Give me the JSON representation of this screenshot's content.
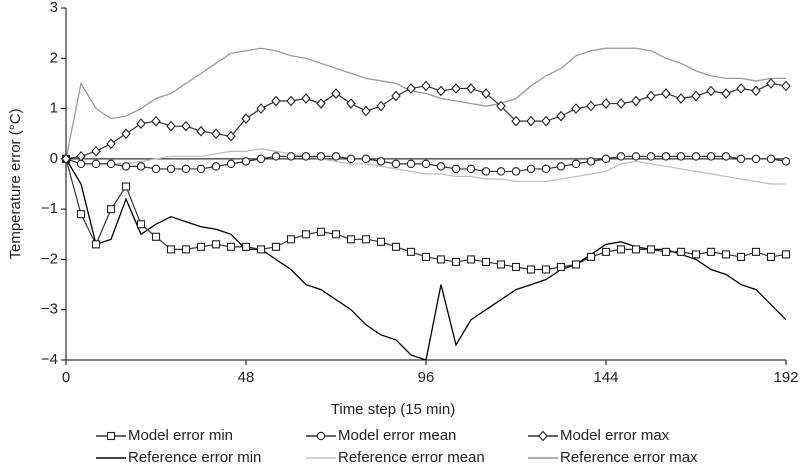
{
  "chart_data": {
    "type": "line",
    "xlabel": "Time step (15 min)",
    "ylabel": "Temperature error (°C)",
    "x": [
      0,
      4,
      8,
      12,
      16,
      20,
      24,
      28,
      32,
      36,
      40,
      44,
      48,
      52,
      56,
      60,
      64,
      68,
      72,
      76,
      80,
      84,
      88,
      92,
      96,
      100,
      104,
      108,
      112,
      116,
      120,
      124,
      128,
      132,
      136,
      140,
      144,
      148,
      152,
      156,
      160,
      164,
      168,
      172,
      176,
      180,
      184,
      188,
      192
    ],
    "xlim": [
      0,
      192
    ],
    "xticks": [
      0,
      48,
      96,
      144,
      192
    ],
    "ylim": [
      -4,
      3
    ],
    "yticks": [
      {
        "value": -4,
        "label": "−4"
      },
      {
        "value": -3,
        "label": "−3"
      },
      {
        "value": -2,
        "label": "−2"
      },
      {
        "value": -1,
        "label": "−1"
      },
      0,
      1,
      2,
      3
    ],
    "legend": "bottom",
    "series": [
      {
        "name": "Reference error min",
        "color": "#000000",
        "values": [
          0,
          -0.5,
          -1.7,
          -1.6,
          -0.8,
          -1.5,
          -1.3,
          -1.15,
          -1.25,
          -1.35,
          -1.4,
          -1.5,
          -1.8,
          -1.8,
          -2.0,
          -2.2,
          -2.5,
          -2.6,
          -2.8,
          -3.0,
          -3.3,
          -3.5,
          -3.6,
          -3.9,
          -4.0,
          -2.5,
          -3.7,
          -3.2,
          -3.0,
          -2.8,
          -2.6,
          -2.5,
          -2.4,
          -2.2,
          -2.1,
          -1.9,
          -1.7,
          -1.65,
          -1.75,
          -1.8,
          -1.8,
          -1.9,
          -2.0,
          -2.2,
          -2.3,
          -2.5,
          -2.6,
          -2.9,
          -3.2
        ]
      },
      {
        "name": "Reference error mean",
        "color": "#c0c0c0",
        "values": [
          0,
          -0.1,
          -0.1,
          -0.1,
          -0.1,
          -0.05,
          0,
          0.05,
          0.05,
          0.05,
          0.1,
          0.15,
          0.15,
          0.2,
          0.15,
          0.1,
          0.05,
          0,
          -0.05,
          -0.1,
          -0.1,
          -0.15,
          -0.2,
          -0.25,
          -0.3,
          -0.3,
          -0.35,
          -0.35,
          -0.4,
          -0.4,
          -0.45,
          -0.45,
          -0.45,
          -0.4,
          -0.35,
          -0.3,
          -0.25,
          -0.1,
          -0.05,
          -0.1,
          -0.15,
          -0.2,
          -0.25,
          -0.3,
          -0.35,
          -0.4,
          -0.45,
          -0.5,
          -0.5
        ]
      },
      {
        "name": "Reference error max",
        "color": "#999999",
        "values": [
          0,
          1.5,
          1.0,
          0.8,
          0.85,
          1.0,
          1.2,
          1.3,
          1.5,
          1.7,
          1.9,
          2.1,
          2.15,
          2.2,
          2.15,
          2.05,
          2.0,
          1.9,
          1.8,
          1.7,
          1.6,
          1.55,
          1.5,
          1.35,
          1.3,
          1.2,
          1.15,
          1.1,
          1.05,
          1.1,
          1.2,
          1.45,
          1.65,
          1.8,
          2.05,
          2.15,
          2.2,
          2.2,
          2.2,
          2.15,
          2.0,
          1.9,
          1.75,
          1.65,
          1.6,
          1.6,
          1.55,
          1.6,
          1.6
        ]
      },
      {
        "name": "Model error min",
        "color": "#333333",
        "marker": "square",
        "values": [
          0,
          -1.1,
          -1.7,
          -1.0,
          -0.55,
          -1.3,
          -1.55,
          -1.8,
          -1.8,
          -1.75,
          -1.7,
          -1.75,
          -1.75,
          -1.8,
          -1.75,
          -1.6,
          -1.5,
          -1.45,
          -1.5,
          -1.6,
          -1.6,
          -1.65,
          -1.75,
          -1.85,
          -1.95,
          -2.0,
          -2.05,
          -2.0,
          -2.05,
          -2.1,
          -2.15,
          -2.2,
          -2.2,
          -2.15,
          -2.1,
          -1.95,
          -1.85,
          -1.8,
          -1.8,
          -1.8,
          -1.85,
          -1.85,
          -1.9,
          -1.85,
          -1.9,
          -1.95,
          -1.85,
          -1.95,
          -1.9
        ]
      },
      {
        "name": "Model error mean",
        "color": "#333333",
        "marker": "circle",
        "values": [
          0,
          -0.1,
          -0.1,
          -0.1,
          -0.15,
          -0.15,
          -0.2,
          -0.2,
          -0.2,
          -0.2,
          -0.15,
          -0.1,
          -0.05,
          0,
          0.05,
          0.05,
          0.05,
          0.05,
          0.05,
          0,
          0,
          -0.05,
          -0.1,
          -0.1,
          -0.1,
          -0.15,
          -0.2,
          -0.2,
          -0.25,
          -0.25,
          -0.25,
          -0.2,
          -0.2,
          -0.15,
          -0.1,
          -0.05,
          0,
          0.05,
          0.05,
          0.05,
          0.05,
          0.05,
          0.05,
          0.05,
          0.05,
          0,
          0,
          0,
          -0.05
        ]
      },
      {
        "name": "Model error max",
        "color": "#333333",
        "marker": "diamond",
        "values": [
          0,
          0.05,
          0.15,
          0.3,
          0.5,
          0.7,
          0.75,
          0.65,
          0.65,
          0.55,
          0.5,
          0.45,
          0.8,
          1.0,
          1.15,
          1.15,
          1.2,
          1.1,
          1.3,
          1.1,
          0.95,
          1.05,
          1.25,
          1.4,
          1.45,
          1.35,
          1.4,
          1.4,
          1.3,
          1.05,
          0.75,
          0.75,
          0.75,
          0.85,
          1.0,
          1.05,
          1.1,
          1.1,
          1.15,
          1.25,
          1.3,
          1.2,
          1.25,
          1.35,
          1.3,
          1.4,
          1.35,
          1.5,
          1.45
        ]
      }
    ]
  }
}
